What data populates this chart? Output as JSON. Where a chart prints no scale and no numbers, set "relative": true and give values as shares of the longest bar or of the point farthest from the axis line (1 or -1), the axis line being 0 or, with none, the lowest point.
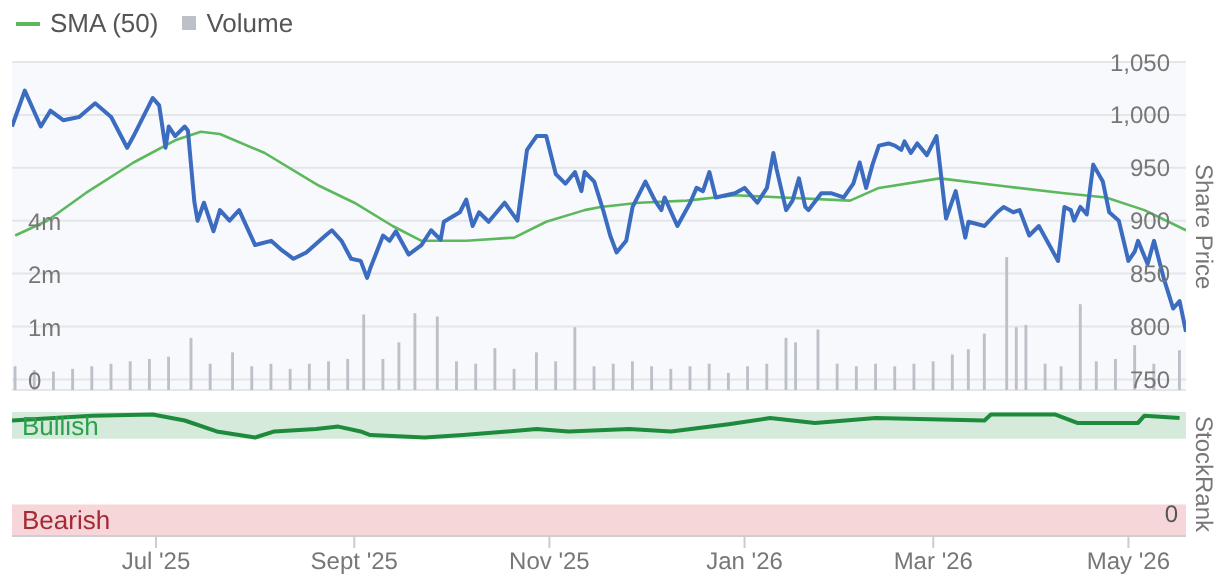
{
  "chart_data": [
    {
      "type": "line",
      "legend": "top left",
      "grid": "y",
      "tick_labels": "y",
      "ylabel": "Share Price",
      "log": "y2",
      "xlim": [
        "2025-05-17",
        "2026-05-19"
      ],
      "ylim": [
        740,
        1050
      ],
      "yticks": [
        750,
        800,
        850,
        900,
        950,
        {
          "value": 1000,
          "label": "1,000"
        },
        {
          "value": 1050,
          "label": "1,050"
        }
      ],
      "y2lim": [
        0.44,
        32
      ],
      "y2ticks": [
        {
          "value": 0.5,
          "label": "0"
        },
        {
          "value": 1,
          "label": "1m"
        },
        {
          "value": 2,
          "label": "2m"
        },
        {
          "value": 4,
          "label": "4m"
        }
      ],
      "series": [
        {
          "name": "Volume",
          "type": "bar",
          "axis": "y2",
          "color": "#bcc0c8",
          "x": [
            "2025-05-18",
            "2025-05-24",
            "2025-05-30",
            "2025-06-05",
            "2025-06-11",
            "2025-06-17",
            "2025-06-23",
            "2025-06-29",
            "2025-07-05",
            "2025-07-12",
            "2025-07-18",
            "2025-07-25",
            "2025-07-31",
            "2025-08-06",
            "2025-08-12",
            "2025-08-18",
            "2025-08-24",
            "2025-08-30",
            "2025-09-04",
            "2025-09-10",
            "2025-09-15",
            "2025-09-20",
            "2025-09-27",
            "2025-10-03",
            "2025-10-09",
            "2025-10-15",
            "2025-10-21",
            "2025-10-28",
            "2025-11-03",
            "2025-11-09",
            "2025-11-15",
            "2025-11-21",
            "2025-11-27",
            "2025-12-03",
            "2025-12-09",
            "2025-12-15",
            "2025-12-21",
            "2025-12-27",
            "2026-01-02",
            "2026-01-08",
            "2026-01-14",
            "2026-01-17",
            "2026-01-24",
            "2026-01-30",
            "2026-02-05",
            "2026-02-11",
            "2026-02-17",
            "2026-02-23",
            "2026-03-01",
            "2026-03-07",
            "2026-03-12",
            "2026-03-17",
            "2026-03-24",
            "2026-03-27",
            "2026-03-30",
            "2026-04-05",
            "2026-04-10",
            "2026-04-16",
            "2026-04-21",
            "2026-04-27",
            "2026-05-03",
            "2026-05-09",
            "2026-05-17"
          ],
          "values": [
            0.6,
            0.57,
            0.56,
            0.58,
            0.6,
            0.62,
            0.64,
            0.66,
            0.68,
            0.87,
            0.62,
            0.72,
            0.6,
            0.62,
            0.58,
            0.62,
            0.64,
            0.66,
            1.18,
            0.66,
            0.82,
            1.2,
            1.15,
            0.64,
            0.62,
            0.76,
            0.58,
            0.72,
            0.64,
            1.0,
            0.6,
            0.62,
            0.64,
            0.6,
            0.58,
            0.6,
            0.62,
            0.55,
            0.6,
            0.62,
            0.87,
            0.82,
            0.97,
            0.62,
            0.6,
            0.62,
            0.6,
            0.62,
            0.64,
            0.7,
            0.75,
            0.92,
            2.5,
            1.0,
            1.03,
            0.62,
            0.6,
            1.35,
            0.64,
            0.66,
            0.79,
            0.62,
            0.74
          ]
        },
        {
          "name": "SMA (50)",
          "color": "#5cb85c",
          "x": [
            "2025-05-18",
            "2025-05-28",
            "2025-06-09",
            "2025-06-24",
            "2025-07-07",
            "2025-07-15",
            "2025-07-21",
            "2025-08-04",
            "2025-08-21",
            "2025-09-01",
            "2025-09-13",
            "2025-09-22",
            "2025-10-06",
            "2025-10-21",
            "2025-10-31",
            "2025-11-12",
            "2025-11-17",
            "2025-11-29",
            "2025-12-14",
            "2025-12-29",
            "2026-02-03",
            "2026-02-12",
            "2026-03-03",
            "2026-03-22",
            "2026-04-11",
            "2026-04-24",
            "2026-05-06",
            "2026-05-19"
          ],
          "values": [
            886,
            900,
            926,
            955,
            976,
            984,
            982,
            964,
            933,
            917,
            895,
            881,
            881,
            884,
            899,
            910,
            913,
            917,
            919,
            924,
            919,
            931,
            940,
            933,
            926,
            922,
            910,
            891
          ]
        },
        {
          "color": "#3b6cbf",
          "x": [
            "2025-05-17",
            "2025-05-21",
            "2025-05-26",
            "2025-05-29",
            "2025-06-02",
            "2025-06-07",
            "2025-06-12",
            "2025-06-17",
            "2025-06-22",
            "2025-06-24",
            "2025-06-30",
            "2025-07-02",
            "2025-07-04",
            "2025-07-05",
            "2025-07-07",
            "2025-07-10",
            "2025-07-11",
            "2025-07-13",
            "2025-07-14",
            "2025-07-16",
            "2025-07-19",
            "2025-07-21",
            "2025-07-24",
            "2025-07-27",
            "2025-08-01",
            "2025-08-06",
            "2025-08-09",
            "2025-08-13",
            "2025-08-17",
            "2025-08-23",
            "2025-08-25",
            "2025-08-28",
            "2025-08-31",
            "2025-09-03",
            "2025-09-05",
            "2025-09-06",
            "2025-09-10",
            "2025-09-12",
            "2025-09-14",
            "2025-09-18",
            "2025-09-22",
            "2025-09-25",
            "2025-09-28",
            "2025-09-29",
            "2025-10-04",
            "2025-10-06",
            "2025-10-08",
            "2025-10-10",
            "2025-10-13",
            "2025-10-18",
            "2025-10-22",
            "2025-10-25",
            "2025-10-28",
            "2025-10-31",
            "2025-11-03",
            "2025-11-06",
            "2025-11-09",
            "2025-11-11",
            "2025-11-12",
            "2025-11-15",
            "2025-11-18",
            "2025-11-20",
            "2025-11-22",
            "2025-11-25",
            "2025-11-27",
            "2025-12-01",
            "2025-12-04",
            "2025-12-06",
            "2025-12-07",
            "2025-12-11",
            "2025-12-15",
            "2025-12-17",
            "2025-12-19",
            "2025-12-21",
            "2025-12-23",
            "2025-12-29",
            "2026-01-01",
            "2026-01-05",
            "2026-01-08",
            "2026-01-10",
            "2026-01-11",
            "2026-01-14",
            "2026-01-16",
            "2026-01-18",
            "2026-01-20",
            "2026-01-21",
            "2026-01-25",
            "2026-01-28",
            "2026-02-01",
            "2026-02-04",
            "2026-02-06",
            "2026-02-08",
            "2026-02-10",
            "2026-02-12",
            "2026-02-15",
            "2026-02-17",
            "2026-02-19",
            "2026-02-20",
            "2026-02-22",
            "2026-02-24",
            "2026-02-27",
            "2026-03-02",
            "2026-03-05",
            "2026-03-08",
            "2026-03-11",
            "2026-03-12",
            "2026-03-17",
            "2026-03-21",
            "2026-03-23",
            "2026-03-26",
            "2026-03-28",
            "2026-03-31",
            "2026-04-03",
            "2026-04-09",
            "2026-04-11",
            "2026-04-13",
            "2026-04-14",
            "2026-04-16",
            "2026-04-18",
            "2026-04-20",
            "2026-04-23",
            "2026-04-25",
            "2026-04-28",
            "2026-05-01",
            "2026-05-03",
            "2026-05-04",
            "2026-05-07",
            "2026-05-09",
            "2026-05-12",
            "2026-05-15",
            "2026-05-17",
            "2026-05-19"
          ],
          "values": [
            989,
            1023,
            989,
            1004,
            995,
            998,
            1011,
            998,
            969,
            980,
            1016,
            1009,
            969,
            989,
            980,
            989,
            985,
            918,
            900,
            917,
            890,
            910,
            900,
            910,
            877,
            881,
            873,
            864,
            870,
            886,
            891,
            881,
            864,
            862,
            846,
            855,
            886,
            881,
            890,
            868,
            877,
            891,
            882,
            899,
            908,
            920,
            895,
            908,
            899,
            917,
            900,
            967,
            980,
            980,
            944,
            935,
            946,
            928,
            946,
            937,
            908,
            886,
            870,
            881,
            913,
            937,
            919,
            910,
            922,
            895,
            917,
            931,
            928,
            946,
            922,
            926,
            931,
            917,
            931,
            964,
            949,
            910,
            919,
            940,
            913,
            910,
            926,
            926,
            922,
            935,
            955,
            931,
            953,
            971,
            973,
            971,
            967,
            975,
            964,
            973,
            962,
            980,
            902,
            928,
            884,
            899,
            895,
            908,
            913,
            908,
            910,
            886,
            895,
            862,
            913,
            910,
            900,
            913,
            906,
            953,
            937,
            908,
            900,
            862,
            871,
            881,
            859,
            881,
            846,
            817,
            824,
            795
          ]
        }
      ]
    },
    {
      "type": "line",
      "ylabel": "StockRank",
      "xlim": [
        "2025-05-17",
        "2026-05-19"
      ],
      "xticks": [
        {
          "value": "2025-07-01",
          "label": "Jul '25"
        },
        {
          "value": "2025-09-01",
          "label": "Sept '25"
        },
        {
          "value": "2025-11-01",
          "label": "Nov '25"
        },
        {
          "value": "2026-01-01",
          "label": "Jan '26"
        },
        {
          "value": "2026-03-01",
          "label": "Mar '26"
        },
        {
          "value": "2026-05-01",
          "label": "May '26"
        }
      ],
      "relative": true,
      "annotations": [
        "0"
      ],
      "bands": [
        {
          "axis": "y",
          "from": 0.8,
          "to": 1.02,
          "label": "Bullish",
          "color": "#d5eadb"
        },
        {
          "axis": "y",
          "from": 0,
          "to": 0.26,
          "label": "Bearish",
          "color": "#f6d6d9"
        }
      ],
      "series": [
        {
          "color": "#1e8a3c",
          "x": [
            "2025-05-17",
            "2025-06-11",
            "2025-06-30",
            "2025-07-10",
            "2025-07-20",
            "2025-08-01",
            "2025-08-07",
            "2025-08-20",
            "2025-08-27",
            "2025-09-03",
            "2025-09-06",
            "2025-09-23",
            "2025-10-05",
            "2025-10-28",
            "2025-11-07",
            "2025-11-26",
            "2025-12-09",
            "2025-12-27",
            "2026-01-09",
            "2026-01-23",
            "2026-02-11",
            "2026-03-17",
            "2026-03-19",
            "2026-04-08",
            "2026-04-15",
            "2026-05-04",
            "2026-05-06",
            "2026-05-17"
          ],
          "values": [
            0.95,
            0.99,
            1,
            0.95,
            0.86,
            0.81,
            0.86,
            0.88,
            0.9,
            0.86,
            0.83,
            0.81,
            0.83,
            0.88,
            0.86,
            0.88,
            0.86,
            0.92,
            0.97,
            0.93,
            0.97,
            0.95,
            1,
            1,
            0.93,
            0.93,
            0.99,
            0.97
          ]
        }
      ]
    }
  ]
}
